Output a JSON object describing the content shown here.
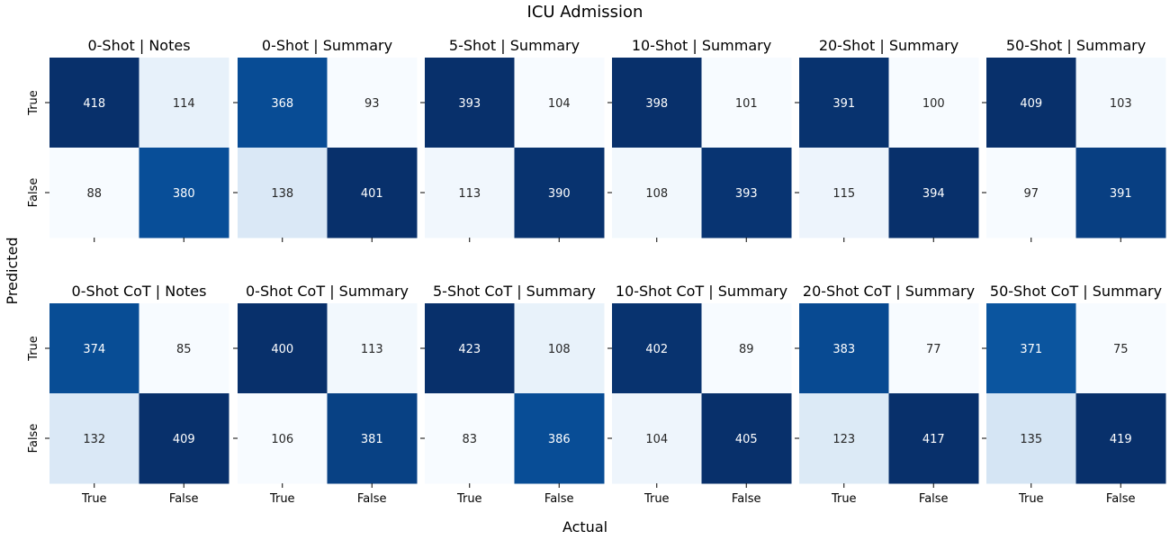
{
  "chart_data": {
    "type": "heatmap",
    "title": "ICU Admission",
    "xlabel": "Actual",
    "ylabel": "Predicted",
    "x_categories": [
      "True",
      "False"
    ],
    "y_categories": [
      "True",
      "False"
    ],
    "colormap": "Blues",
    "colorbar": false,
    "panels": [
      {
        "title": "0-Shot | Notes",
        "matrix": [
          [
            418,
            114
          ],
          [
            88,
            380
          ]
        ]
      },
      {
        "title": "0-Shot | Summary",
        "matrix": [
          [
            368,
            93
          ],
          [
            138,
            401
          ]
        ]
      },
      {
        "title": "5-Shot | Summary",
        "matrix": [
          [
            393,
            104
          ],
          [
            113,
            390
          ]
        ]
      },
      {
        "title": "10-Shot | Summary",
        "matrix": [
          [
            398,
            101
          ],
          [
            108,
            393
          ]
        ]
      },
      {
        "title": "20-Shot | Summary",
        "matrix": [
          [
            391,
            100
          ],
          [
            115,
            394
          ]
        ]
      },
      {
        "title": "50-Shot | Summary",
        "matrix": [
          [
            409,
            103
          ],
          [
            97,
            391
          ]
        ]
      },
      {
        "title": "0-Shot CoT | Notes",
        "matrix": [
          [
            374,
            85
          ],
          [
            132,
            409
          ]
        ]
      },
      {
        "title": "0-Shot CoT | Summary",
        "matrix": [
          [
            400,
            113
          ],
          [
            106,
            381
          ]
        ]
      },
      {
        "title": "5-Shot CoT | Summary",
        "matrix": [
          [
            423,
            108
          ],
          [
            83,
            386
          ]
        ]
      },
      {
        "title": "10-Shot CoT | Summary",
        "matrix": [
          [
            402,
            89
          ],
          [
            104,
            405
          ]
        ]
      },
      {
        "title": "20-Shot CoT | Summary",
        "matrix": [
          [
            383,
            77
          ],
          [
            123,
            417
          ]
        ]
      },
      {
        "title": "50-Shot CoT | Summary",
        "matrix": [
          [
            371,
            75
          ],
          [
            135,
            419
          ]
        ]
      }
    ]
  }
}
